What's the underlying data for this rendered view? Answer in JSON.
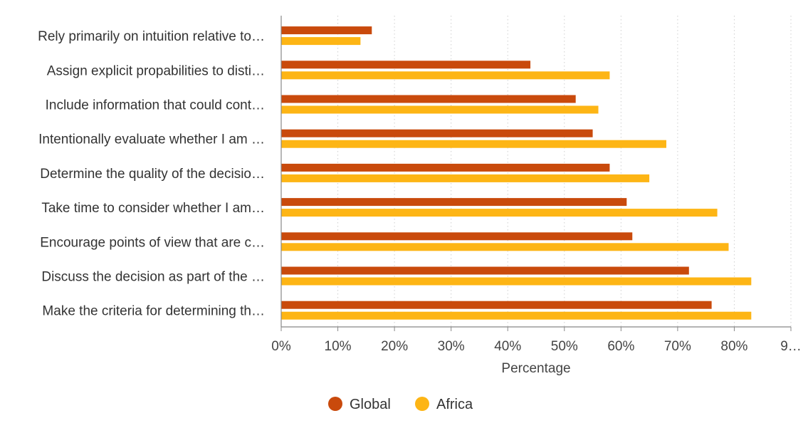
{
  "chart_data": {
    "type": "bar",
    "orientation": "horizontal",
    "categories": [
      "Rely primarily on intuition relative to…",
      "Assign explicit propabilities to disti…",
      "Include information that could cont…",
      "Intentionally evaluate whether I am …",
      "Determine the quality of the decisio…",
      "Take time to consider whether I am…",
      "Encourage points of view that are c…",
      "Discuss the decision as part of the …",
      "Make the criteria for determining th…"
    ],
    "series": [
      {
        "name": "Global",
        "color": "#c94a0c",
        "values": [
          16,
          44,
          52,
          55,
          58,
          61,
          62,
          72,
          76
        ]
      },
      {
        "name": "Africa",
        "color": "#fdb515",
        "values": [
          14,
          58,
          56,
          68,
          65,
          77,
          79,
          83,
          83
        ]
      }
    ],
    "x_ticks": [
      "0%",
      "10%",
      "20%",
      "30%",
      "40%",
      "50%",
      "60%",
      "70%",
      "80%",
      "9…"
    ],
    "xlim": [
      0,
      90
    ],
    "xlabel": "Percentage",
    "grid": true,
    "legend": "bottom-center"
  }
}
